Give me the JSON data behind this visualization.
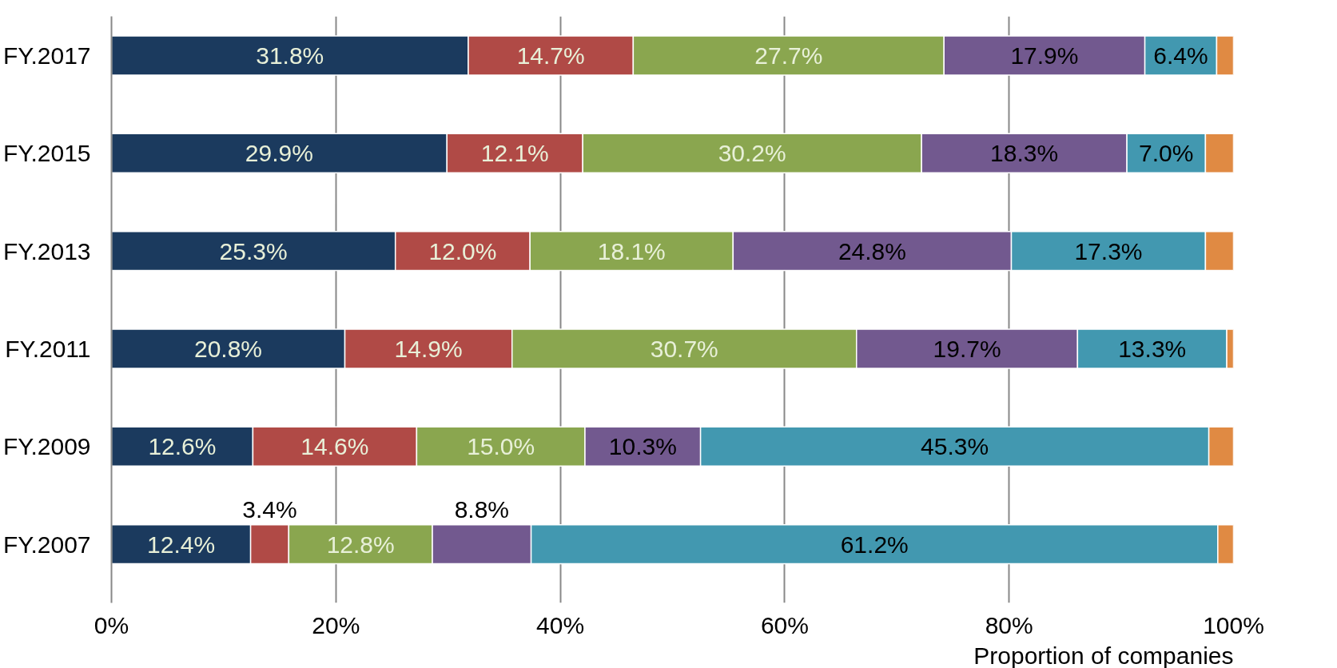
{
  "chart_data": {
    "type": "bar",
    "orientation": "horizontal",
    "stacked": true,
    "xlabel": "Proportion of companies",
    "categories": [
      "FY.2017",
      "FY.2015",
      "FY.2013",
      "FY.2011",
      "FY.2009",
      "FY.2007"
    ],
    "series": [
      {
        "color": "#1b3a5e",
        "values": [
          31.8,
          29.9,
          25.3,
          20.8,
          12.6,
          12.4
        ],
        "value_labels": [
          "31.8%",
          "29.9%",
          "25.3%",
          "20.8%",
          "12.6%",
          "12.4%"
        ]
      },
      {
        "color": "#b04a46",
        "values": [
          14.7,
          12.1,
          12.0,
          14.9,
          14.6,
          3.4
        ],
        "value_labels": [
          "14.7%",
          "12.1%",
          "12.0%",
          "14.9%",
          "14.6%",
          "3.4%"
        ]
      },
      {
        "color": "#8aa64f",
        "values": [
          27.7,
          30.2,
          18.1,
          30.7,
          15.0,
          12.8
        ],
        "value_labels": [
          "27.7%",
          "30.2%",
          "18.1%",
          "30.7%",
          "15.0%",
          "12.8%"
        ]
      },
      {
        "color": "#72598f",
        "values": [
          17.9,
          18.3,
          24.8,
          19.7,
          10.3,
          8.8
        ],
        "value_labels": [
          "17.9%",
          "18.3%",
          "24.8%",
          "19.7%",
          "10.3%",
          "8.8%"
        ]
      },
      {
        "color": "#4298b0",
        "values": [
          6.4,
          7.0,
          17.3,
          13.3,
          45.3,
          61.2
        ],
        "value_labels": [
          "6.4%",
          "7.0%",
          "17.3%",
          "13.3%",
          "45.3%",
          "61.2%"
        ]
      },
      {
        "color": "#e08a43",
        "values": [
          1.5,
          2.5,
          2.5,
          0.6,
          2.2,
          1.4
        ]
      }
    ],
    "xlim": [
      0,
      100
    ],
    "xticks": [
      {
        "value": 0,
        "label": "0%"
      },
      {
        "value": 20,
        "label": "20%"
      },
      {
        "value": 40,
        "label": "40%"
      },
      {
        "value": 60,
        "label": "60%"
      },
      {
        "value": 80,
        "label": "80%"
      },
      {
        "value": 100,
        "label": "100%"
      }
    ],
    "grid": "x"
  }
}
